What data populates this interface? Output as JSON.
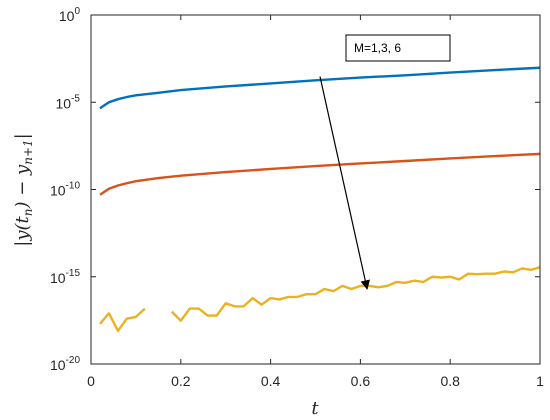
{
  "chart_data": {
    "type": "line",
    "title": "",
    "xlabel": "t",
    "ylabel": "|y(t_n) − y_{n+1}|",
    "xlim": [
      0,
      1
    ],
    "ylim": [
      1e-20,
      1
    ],
    "yscale": "log",
    "grid": false,
    "x_ticks": [
      0,
      0.2,
      0.4,
      0.6,
      0.8,
      1
    ],
    "x_tick_labels": [
      "0",
      "0.2",
      "0.4",
      "0.6",
      "0.8",
      "1"
    ],
    "y_ticks": [
      1e-20,
      1e-15,
      1e-10,
      1e-05,
      1
    ],
    "y_tick_labels": [
      {
        "base": "10",
        "exp": "-20"
      },
      {
        "base": "10",
        "exp": "-15"
      },
      {
        "base": "10",
        "exp": "-10"
      },
      {
        "base": "10",
        "exp": "-5"
      },
      {
        "base": "10",
        "exp": "0"
      }
    ],
    "annotation": {
      "text": "M=1,3, 6",
      "arrow_from": [
        0.51,
        0.0003
      ],
      "arrow_to": [
        0.615,
        2e-16
      ]
    },
    "series": [
      {
        "color": "#0072BD",
        "x": [
          0.02,
          0.04,
          0.06,
          0.08,
          0.1,
          0.15,
          0.2,
          0.3,
          0.4,
          0.5,
          0.6,
          0.7,
          0.8,
          0.9,
          1.0
        ],
        "y": [
          4.5e-06,
          1e-05,
          1.5e-05,
          2e-05,
          2.5e-05,
          3.5e-05,
          5e-05,
          8e-05,
          0.00012,
          0.00018,
          0.00026,
          0.00035,
          0.0005,
          0.0007,
          0.00095
        ]
      },
      {
        "color": "#D95319",
        "x": [
          0.02,
          0.04,
          0.06,
          0.08,
          0.1,
          0.15,
          0.2,
          0.3,
          0.4,
          0.5,
          0.6,
          0.7,
          0.8,
          0.9,
          1.0
        ],
        "y": [
          5e-11,
          1.1e-10,
          1.7e-10,
          2.3e-10,
          3e-10,
          4.5e-10,
          6.2e-10,
          1e-09,
          1.5e-09,
          2.2e-09,
          3.1e-09,
          4.3e-09,
          6e-09,
          8.2e-09,
          1.1e-08
        ]
      },
      {
        "color": "#EDB120",
        "x": [
          0.02,
          0.04,
          0.06,
          0.08,
          0.1,
          0.12,
          0.16,
          0.18,
          0.2,
          0.22,
          0.24,
          0.26,
          0.28,
          0.3,
          0.32,
          0.34,
          0.36,
          0.38,
          0.4,
          0.42,
          0.44,
          0.46,
          0.48,
          0.5,
          0.52,
          0.54,
          0.56,
          0.58,
          0.6,
          0.62,
          0.64,
          0.66,
          0.68,
          0.7,
          0.72,
          0.74,
          0.76,
          0.78,
          0.8,
          0.82,
          0.84,
          0.86,
          0.88,
          0.9,
          0.92,
          0.94,
          0.96,
          0.98,
          1.0
        ],
        "y": [
          2e-18,
          8e-18,
          8e-19,
          4e-18,
          5e-18,
          1.5e-17,
          null,
          1e-17,
          3e-18,
          1.5e-17,
          1.5e-17,
          6e-18,
          6e-18,
          3e-17,
          2e-17,
          2e-17,
          6e-17,
          2.5e-17,
          6e-17,
          5e-17,
          7e-17,
          7e-17,
          1e-16,
          1e-16,
          2e-16,
          1.5e-16,
          3e-16,
          2e-16,
          3e-16,
          3e-16,
          2.5e-16,
          3e-16,
          5e-16,
          4.5e-16,
          6e-16,
          5e-16,
          1e-15,
          9e-16,
          1e-15,
          7e-16,
          1.5e-15,
          1.4e-15,
          1.5e-15,
          1.5e-15,
          2e-15,
          1.8e-15,
          3e-15,
          2.5e-15,
          3.5e-15
        ]
      }
    ]
  }
}
